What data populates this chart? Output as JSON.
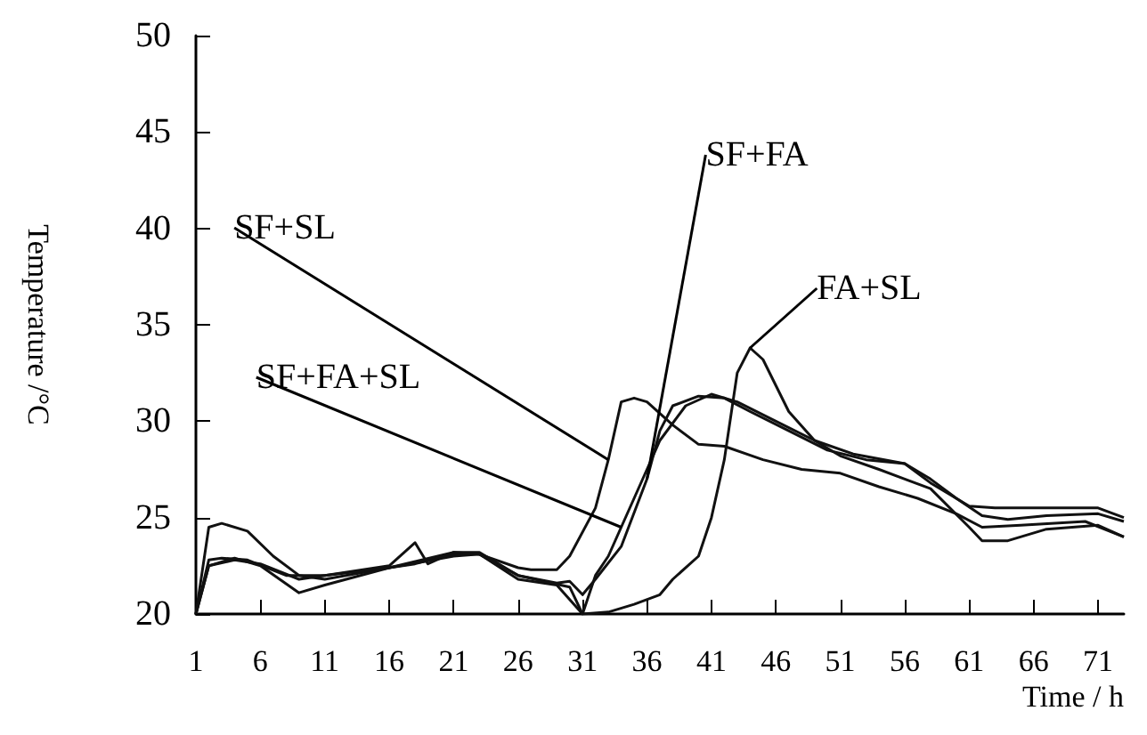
{
  "chart_data": {
    "type": "line",
    "xlabel": "Time / h",
    "ylabel": "Temperature /°C",
    "xlim": [
      1,
      73
    ],
    "xticks": [
      1,
      6,
      11,
      16,
      21,
      26,
      31,
      36,
      41,
      46,
      51,
      56,
      61,
      66,
      71
    ],
    "ylim": [
      20,
      50
    ],
    "yticks": [
      20,
      25,
      30,
      35,
      40,
      45,
      50
    ],
    "grid": false,
    "legend": false,
    "marker": "none",
    "line_style": "solid",
    "series": [
      {
        "name": "SF+SL",
        "color": "#111111",
        "x": [
          1,
          2,
          3,
          5,
          7,
          9,
          11,
          16,
          21,
          23,
          26,
          27,
          29,
          30,
          32,
          33,
          34,
          35,
          36,
          38,
          40,
          42,
          45,
          48,
          51,
          54,
          57,
          60,
          62,
          65,
          70,
          73
        ],
        "values": [
          20,
          24.5,
          24.7,
          24.3,
          23,
          22,
          21.8,
          22.4,
          23,
          23.1,
          22.4,
          22.3,
          22.3,
          23,
          25.5,
          28,
          31,
          31.2,
          31,
          29.8,
          28.8,
          28.7,
          28,
          27.5,
          27.3,
          26.6,
          26,
          25.2,
          24.5,
          24.6,
          24.8,
          24
        ]
      },
      {
        "name": "SF+FA",
        "color": "#111111",
        "x": [
          1,
          2,
          3,
          5,
          8,
          11,
          16,
          18,
          19,
          21,
          23,
          26,
          29,
          30,
          31,
          32,
          34,
          36,
          37,
          38,
          40,
          42,
          44,
          47,
          50,
          53,
          56,
          58,
          60,
          62,
          64,
          67,
          71,
          73
        ],
        "values": [
          20,
          22.8,
          22.9,
          22.8,
          22,
          22,
          22.5,
          23.7,
          22.6,
          23.2,
          23.2,
          22,
          21.6,
          21.7,
          21,
          21.8,
          23.5,
          27,
          29.5,
          30.8,
          31.3,
          31.2,
          30.5,
          29.5,
          28.5,
          28,
          27.8,
          27,
          26,
          25.1,
          24.9,
          25.1,
          25.2,
          24.8
        ]
      },
      {
        "name": "FA+SL",
        "color": "#111111",
        "x": [
          1,
          2,
          4,
          6,
          9,
          11,
          16,
          18,
          21,
          23,
          26,
          29,
          31,
          33,
          35,
          37,
          38,
          40,
          41,
          42,
          43,
          44,
          45,
          47,
          49,
          51,
          54,
          56,
          58,
          61,
          62,
          64,
          67,
          71,
          73
        ],
        "values": [
          20,
          22.5,
          22.9,
          22.5,
          21.1,
          21.5,
          22.4,
          22.6,
          23.1,
          23.1,
          21.8,
          21.5,
          20,
          20.1,
          20.5,
          21,
          21.8,
          23,
          25,
          28,
          32.5,
          33.8,
          33.2,
          30.5,
          29,
          28.2,
          27.5,
          27,
          26.5,
          24.5,
          23.8,
          23.8,
          24.4,
          24.6,
          24
        ]
      },
      {
        "name": "SF+FA+SL",
        "color": "#111111",
        "x": [
          1,
          2,
          4,
          6,
          9,
          11,
          16,
          21,
          23,
          26,
          30,
          31,
          32,
          33,
          34,
          36,
          37,
          39,
          41,
          43,
          46,
          49,
          52,
          56,
          58,
          61,
          63,
          66,
          71,
          73
        ],
        "values": [
          20,
          22.5,
          22.8,
          22.6,
          21.8,
          22,
          22.4,
          23.2,
          23.1,
          22,
          21.4,
          20,
          22,
          23,
          24.5,
          27.5,
          29,
          30.8,
          31.4,
          31,
          30,
          29,
          28.3,
          27.8,
          26.8,
          25.6,
          25.5,
          25.5,
          25.5,
          25
        ]
      }
    ]
  }
}
